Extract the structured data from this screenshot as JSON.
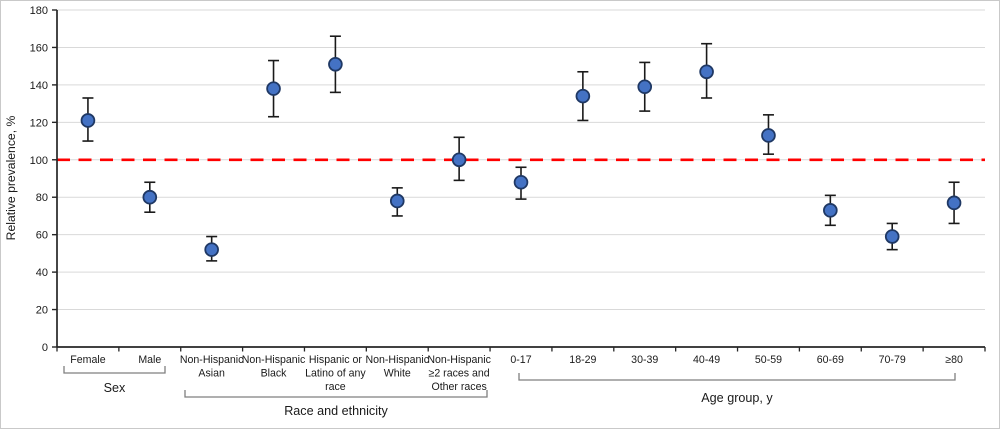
{
  "chart_data": {
    "type": "scatter",
    "subtype": "point-estimates-with-error-bars",
    "title": "",
    "xlabel": "",
    "ylabel": "Relative prevalence, %",
    "ylim": [
      0,
      180
    ],
    "yticks": [
      0,
      20,
      40,
      60,
      80,
      100,
      120,
      140,
      160,
      180
    ],
    "grid": true,
    "legend": "none",
    "reference_line": {
      "value": 100,
      "color": "#FF0000",
      "style": "dashed"
    },
    "colors": {
      "marker_fill": "#4472C4",
      "marker_stroke": "#1F3864",
      "error_bar": "#1A1A1A",
      "gridline": "#D9D9D9",
      "axis": "#262626",
      "bracket": "#7F7F7F",
      "figure_border": "#C9C9C9"
    },
    "groups": [
      {
        "label": "Sex",
        "from": 0,
        "to": 1
      },
      {
        "label": "Race and ethnicity",
        "from": 2,
        "to": 6
      },
      {
        "label": "Age group, y",
        "from": 7,
        "to": 14
      }
    ],
    "points": [
      {
        "category": "Female",
        "label_lines": [
          "Female"
        ],
        "value": 121,
        "ci": [
          110,
          133
        ]
      },
      {
        "category": "Male",
        "label_lines": [
          "Male"
        ],
        "value": 80,
        "ci": [
          72,
          88
        ]
      },
      {
        "category": "Non-Hispanic Asian",
        "label_lines": [
          "Non-Hispanic",
          "Asian"
        ],
        "value": 52,
        "ci": [
          46,
          59
        ]
      },
      {
        "category": "Non-Hispanic Black",
        "label_lines": [
          "Non-Hispanic",
          "Black"
        ],
        "value": 138,
        "ci": [
          123,
          153
        ]
      },
      {
        "category": "Hispanic or Latino of any race",
        "label_lines": [
          "Hispanic or",
          "Latino of any",
          "race"
        ],
        "value": 151,
        "ci": [
          136,
          166
        ]
      },
      {
        "category": "Non-Hispanic White",
        "label_lines": [
          "Non-Hispanic",
          "White"
        ],
        "value": 78,
        "ci": [
          70,
          85
        ]
      },
      {
        "category": "Non-Hispanic ≥2 races and Other races",
        "label_lines": [
          "Non-Hispanic",
          "≥2 races and",
          "Other races"
        ],
        "value": 100,
        "ci": [
          89,
          112
        ]
      },
      {
        "category": "0-17",
        "label_lines": [
          "0-17"
        ],
        "value": 88,
        "ci": [
          79,
          96
        ]
      },
      {
        "category": "18-29",
        "label_lines": [
          "18-29"
        ],
        "value": 134,
        "ci": [
          121,
          147
        ]
      },
      {
        "category": "30-39",
        "label_lines": [
          "30-39"
        ],
        "value": 139,
        "ci": [
          126,
          152
        ]
      },
      {
        "category": "40-49",
        "label_lines": [
          "40-49"
        ],
        "value": 147,
        "ci": [
          133,
          162
        ]
      },
      {
        "category": "50-59",
        "label_lines": [
          "50-59"
        ],
        "value": 113,
        "ci": [
          103,
          124
        ]
      },
      {
        "category": "60-69",
        "label_lines": [
          "60-69"
        ],
        "value": 73,
        "ci": [
          65,
          81
        ]
      },
      {
        "category": "70-79",
        "label_lines": [
          "70-79"
        ],
        "value": 59,
        "ci": [
          52,
          66
        ]
      },
      {
        "category": "≥80",
        "label_lines": [
          "≥80"
        ],
        "value": 77,
        "ci": [
          66,
          88
        ]
      }
    ]
  }
}
